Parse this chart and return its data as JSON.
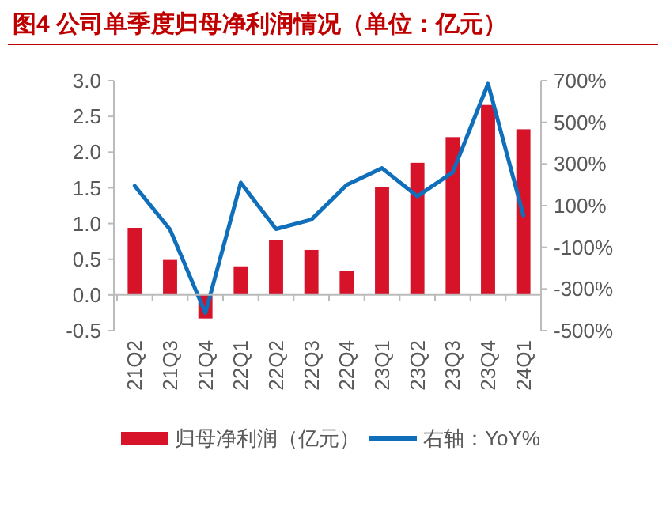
{
  "chart_data": {
    "type": "bar",
    "title": "图4 公司单季度归母净利润情况（单位：亿元）",
    "categories": [
      "21Q2",
      "21Q3",
      "21Q4",
      "22Q1",
      "22Q2",
      "22Q3",
      "22Q4",
      "23Q1",
      "23Q2",
      "23Q3",
      "23Q4",
      "24Q1"
    ],
    "series": [
      {
        "name": "归母净利润（亿元）",
        "color": "#d7132a",
        "values": [
          0.94,
          0.49,
          -0.33,
          0.4,
          0.77,
          0.63,
          0.34,
          1.51,
          1.85,
          2.21,
          2.66,
          2.32
        ]
      },
      {
        "name": "右轴：YoY%",
        "type": "line",
        "axis": "y2",
        "color": "#0f6fba",
        "values": [
          195,
          -15,
          -415,
          210,
          -12,
          33,
          200,
          280,
          145,
          260,
          685,
          54
        ]
      }
    ],
    "ylim": [
      -0.5,
      3.0
    ],
    "yticks": [
      {
        "value": -0.5,
        "label": "-0.5"
      },
      {
        "value": 0,
        "label": "0.0"
      },
      {
        "value": 0.5,
        "label": "0.5"
      },
      {
        "value": 1,
        "label": "1.0"
      },
      {
        "value": 1.5,
        "label": "1.5"
      },
      {
        "value": 2,
        "label": "2.0"
      },
      {
        "value": 2.5,
        "label": "2.5"
      },
      {
        "value": 3,
        "label": "3.0"
      }
    ],
    "y2lim": [
      -500,
      700
    ],
    "y2ticks": [
      {
        "value": -500,
        "label": "-500%"
      },
      {
        "value": -300,
        "label": "-300%"
      },
      {
        "value": -100,
        "label": "-100%"
      },
      {
        "value": 100,
        "label": "100%"
      },
      {
        "value": 300,
        "label": "300%"
      },
      {
        "value": 500,
        "label": "500%"
      },
      {
        "value": 700,
        "label": "700%"
      }
    ],
    "legend": "bottom",
    "grid": false
  }
}
